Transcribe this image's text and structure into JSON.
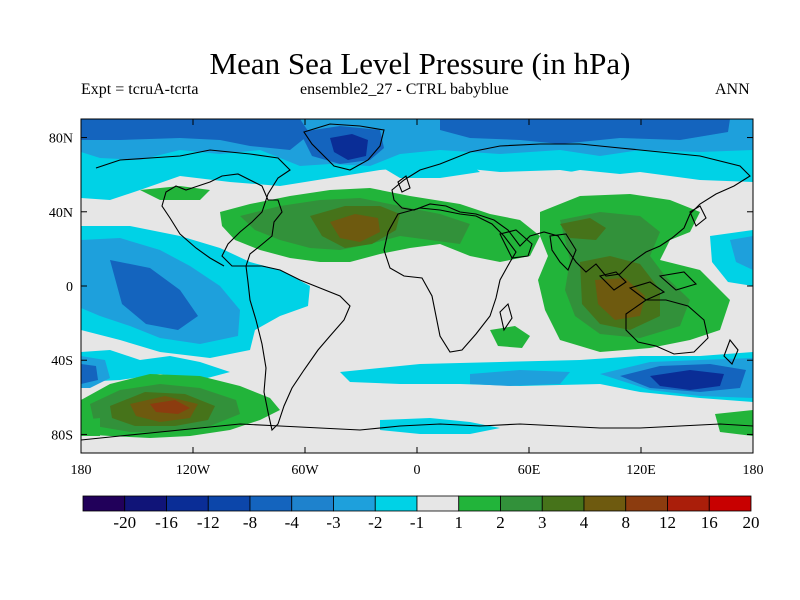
{
  "title": "Mean Sea Level Pressure (in hPa)",
  "subtitle_left": "Expt = tcruA-tcrta",
  "subtitle_center": "ensemble2_27 - CTRL babyblue",
  "subtitle_right": "ANN",
  "lat_ticks": [
    "80N",
    "40N",
    "0",
    "40S",
    "80S"
  ],
  "lon_ticks": [
    "180",
    "120W",
    "60W",
    "0",
    "60E",
    "120E",
    "180"
  ],
  "colorbar": {
    "colors": [
      "#21005a",
      "#101478",
      "#0a2d96",
      "#0c46aa",
      "#1464be",
      "#1e82cd",
      "#1ea0dc",
      "#00d2e6",
      "#e6e6e6",
      "#22b43a",
      "#32913a",
      "#46731a",
      "#6e5a0f",
      "#8c3c0f",
      "#aa1e0a",
      "#c80000"
    ],
    "labels": [
      "-20",
      "-16",
      "-12",
      "-8",
      "-4",
      "-3",
      "-2",
      "-1",
      "1",
      "2",
      "3",
      "4",
      "8",
      "12",
      "16",
      "20"
    ]
  },
  "palette": {
    "ocean_background": "#e6e6e6",
    "cyan": "#00d2e6",
    "light_blue": "#1ea0dc",
    "medium_blue": "#1464be",
    "dark_blue": "#0a2d96",
    "green": "#22b43a",
    "dark_green": "#32913a",
    "olive": "#46731a",
    "brown": "#6e5a0f"
  }
}
